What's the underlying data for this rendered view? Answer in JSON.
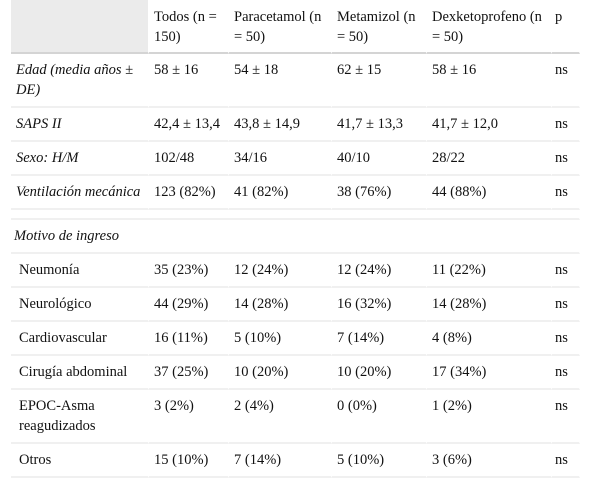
{
  "header": {
    "col0": "",
    "col1": "Todos (n = 150)",
    "col2": "Paracetamol (n = 50)",
    "col3": "Metamizol (n = 50)",
    "col4": "Dexketoprofeno (n = 50)",
    "col5": "p"
  },
  "rows": [
    {
      "label": "Edad (media años ± DE)",
      "todos": "58 ± 16",
      "paracetamol": "54 ± 18",
      "metamizol": "62 ± 15",
      "dexketoprofeno": "58 ± 16",
      "p": "ns"
    },
    {
      "label": "SAPS II",
      "todos": "42,4 ± 13,4",
      "paracetamol": "43,8 ± 14,9",
      "metamizol": "41,7 ± 13,3",
      "dexketoprofeno": "41,7 ± 12,0",
      "p": "ns"
    },
    {
      "label": "Sexo: H/M",
      "todos": "102/48",
      "paracetamol": "34/16",
      "metamizol": "40/10",
      "dexketoprofeno": "28/22",
      "p": "ns"
    },
    {
      "label": "Ventilación mecánica",
      "todos": "123 (82%)",
      "paracetamol": "41 (82%)",
      "metamizol": "38 (76%)",
      "dexketoprofeno": "44 (88%)",
      "p": "ns"
    }
  ],
  "section": {
    "title": "Motivo de ingreso"
  },
  "subrows": [
    {
      "label": "Neumonía",
      "todos": "35 (23%)",
      "paracetamol": "12 (24%)",
      "metamizol": "12 (24%)",
      "dexketoprofeno": "11 (22%)",
      "p": "ns"
    },
    {
      "label": "Neurológico",
      "todos": "44 (29%)",
      "paracetamol": "14 (28%)",
      "metamizol": "16 (32%)",
      "dexketoprofeno": "14 (28%)",
      "p": "ns"
    },
    {
      "label": "Cardiovascular",
      "todos": "16 (11%)",
      "paracetamol": "5 (10%)",
      "metamizol": "7 (14%)",
      "dexketoprofeno": "4 (8%)",
      "p": "ns"
    },
    {
      "label": "Cirugía abdominal",
      "todos": "37 (25%)",
      "paracetamol": "10 (20%)",
      "metamizol": "10 (20%)",
      "dexketoprofeno": "17 (34%)",
      "p": "ns"
    },
    {
      "label": "EPOC-Asma reagudizados",
      "todos": "3 (2%)",
      "paracetamol": "2 (4%)",
      "metamizol": "0 (0%)",
      "dexketoprofeno": "1 (2%)",
      "p": "ns"
    },
    {
      "label": "Otros",
      "todos": "15 (10%)",
      "paracetamol": "7 (14%)",
      "metamizol": "5 (10%)",
      "dexketoprofeno": "3 (6%)",
      "p": "ns"
    }
  ]
}
